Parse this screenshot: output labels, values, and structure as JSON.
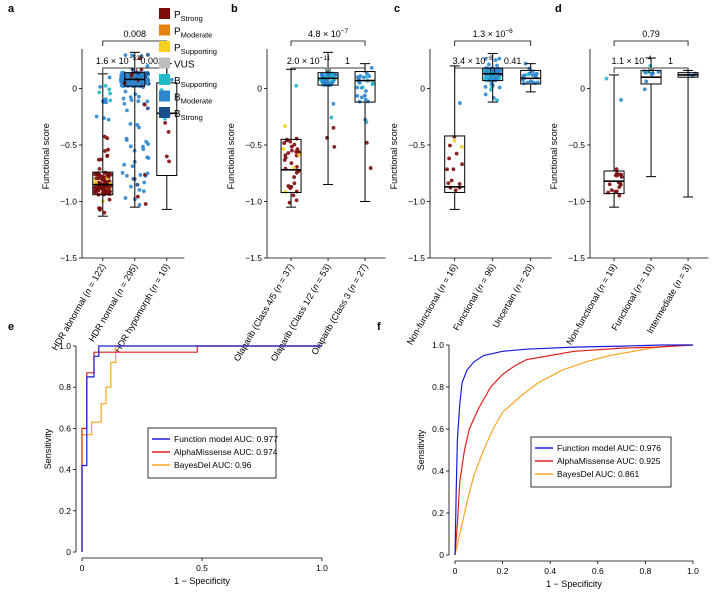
{
  "colors": {
    "P_Strong": "#7b0c0c",
    "P_Moderate": "#e8820e",
    "P_Supporting": "#f5cf1d",
    "VUS": "#bdbdbd",
    "B_Supporting": "#1fb9c9",
    "B_Moderate": "#2f86cf",
    "B_Strong": "#1a4f8a",
    "function_model": "#1a1adb",
    "alphamissense": "#e02020",
    "bayesdel": "#f5a623"
  },
  "legend": [
    {
      "key": "P_Strong",
      "base": "P",
      "sub": "Strong"
    },
    {
      "key": "P_Moderate",
      "base": "P",
      "sub": "Moderate"
    },
    {
      "key": "P_Supporting",
      "base": "P",
      "sub": "Supporting"
    },
    {
      "key": "VUS",
      "base": "VUS",
      "sub": ""
    },
    {
      "key": "B_Supporting",
      "base": "B",
      "sub": "Supporting"
    },
    {
      "key": "B_Moderate",
      "base": "B",
      "sub": "Moderate"
    },
    {
      "key": "B_Strong",
      "base": "B",
      "sub": "Strong"
    }
  ],
  "chart_data": [
    {
      "panel": "a",
      "type": "box",
      "ylabel": "Functional score",
      "ylim": [
        -1.5,
        0.5
      ],
      "yticks": [
        "0",
        "-0.5",
        "-1.0",
        "-1.5"
      ],
      "groups": [
        {
          "label": "HDR abnormal",
          "n": "122",
          "q1": -0.94,
          "median": -0.85,
          "q3": -0.74,
          "min": -1.13,
          "max": 0.13
        },
        {
          "label": "HDR normal",
          "n": "295",
          "q1": 0.02,
          "median": 0.08,
          "q3": 0.14,
          "min": -1.05,
          "max": 0.32
        },
        {
          "label": "HDR hypomorph",
          "n": "10",
          "q1": -0.77,
          "median": -0.22,
          "q3": 0.05,
          "min": -1.07,
          "max": 0.22
        }
      ],
      "comparisons": [
        {
          "text": "1.6 × 10",
          "exp": "−52",
          "from": 0,
          "to": 1
        },
        {
          "text": "0.002",
          "exp": "",
          "from": 1,
          "to": 2
        },
        {
          "text": "0.008",
          "exp": "",
          "from": 0,
          "to": 2
        }
      ]
    },
    {
      "panel": "b",
      "type": "box",
      "ylabel": "Functional score",
      "ylim": [
        -1.5,
        0.5
      ],
      "yticks": [
        "0",
        "-0.5",
        "-1.0",
        "-1.5"
      ],
      "groups": [
        {
          "label": "Olaparib (Class 4/5",
          "n": "37",
          "q1": -0.92,
          "median": -0.72,
          "q3": -0.45,
          "min": -1.05,
          "max": 0.17
        },
        {
          "label": "Olaparib (Class 1/2",
          "n": "53",
          "q1": 0.03,
          "median": 0.09,
          "q3": 0.14,
          "min": -0.85,
          "max": 0.32
        },
        {
          "label": "Olaparib (Class 3",
          "n": "27",
          "q1": -0.12,
          "median": 0.07,
          "q3": 0.15,
          "min": -1.0,
          "max": 0.22
        }
      ],
      "comparisons": [
        {
          "text": "2.0 × 10",
          "exp": "−11",
          "from": 0,
          "to": 1
        },
        {
          "text": "1",
          "exp": "",
          "from": 1,
          "to": 2
        },
        {
          "text": "4.8 × 10",
          "exp": "−7",
          "from": 0,
          "to": 2
        }
      ]
    },
    {
      "panel": "c",
      "type": "box",
      "ylabel": "Functional score",
      "ylim": [
        -1.5,
        0.5
      ],
      "yticks": [
        "0",
        "-0.5",
        "-1.0",
        "-1.5"
      ],
      "groups": [
        {
          "label": "Non-functional",
          "n": "16",
          "q1": -0.92,
          "median": -0.87,
          "q3": -0.42,
          "min": -1.07,
          "max": 0.2
        },
        {
          "label": "Functional",
          "n": "96",
          "q1": 0.07,
          "median": 0.13,
          "q3": 0.18,
          "min": -0.12,
          "max": 0.31
        },
        {
          "label": "Uncertain",
          "n": "20",
          "q1": 0.04,
          "median": 0.09,
          "q3": 0.16,
          "min": -0.03,
          "max": 0.22
        }
      ],
      "comparisons": [
        {
          "text": "3.4 × 10",
          "exp": "−8",
          "from": 0,
          "to": 1
        },
        {
          "text": "0.41",
          "exp": "",
          "from": 1,
          "to": 2
        },
        {
          "text": "1.3 × 10",
          "exp": "−6",
          "from": 0,
          "to": 2
        }
      ]
    },
    {
      "panel": "d",
      "type": "box",
      "ylabel": "Functional score",
      "ylim": [
        -1.5,
        0.5
      ],
      "yticks": [
        "0",
        "-0.5",
        "-1.0",
        "-1.5"
      ],
      "groups": [
        {
          "label": "Non-functional",
          "n": "19",
          "q1": -0.93,
          "median": -0.82,
          "q3": -0.73,
          "min": -1.05,
          "max": 0.12
        },
        {
          "label": "Functional",
          "n": "10",
          "q1": 0.04,
          "median": 0.1,
          "q3": 0.16,
          "min": -0.78,
          "max": 0.27
        },
        {
          "label": "Intermediate",
          "n": "3",
          "q1": 0.1,
          "median": 0.12,
          "q3": 0.14,
          "min": -0.96,
          "max": 0.16
        }
      ],
      "comparisons": [
        {
          "text": "1.1 × 10",
          "exp": "−4",
          "from": 0,
          "to": 1
        },
        {
          "text": "1",
          "exp": "",
          "from": 1,
          "to": 2
        },
        {
          "text": "0.79",
          "exp": "",
          "from": 0,
          "to": 2
        }
      ]
    },
    {
      "panel": "e",
      "type": "line",
      "xlabel": "1 − Specificity",
      "ylabel": "Sensitivity",
      "xlim": [
        0,
        1
      ],
      "ylim": [
        0,
        1
      ],
      "xticks": [
        "0",
        "0.5",
        "1.0"
      ],
      "yticks": [
        "0",
        "0.2",
        "0.4",
        "0.6",
        "0.8",
        "1.0"
      ],
      "series": [
        {
          "name": "Function model AUC: 0.977",
          "color_key": "function_model",
          "points": [
            [
              0,
              0
            ],
            [
              0,
              0.42
            ],
            [
              0.02,
              0.42
            ],
            [
              0.02,
              0.85
            ],
            [
              0.05,
              0.85
            ],
            [
              0.05,
              0.95
            ],
            [
              0.07,
              0.95
            ],
            [
              0.07,
              1.0
            ],
            [
              1,
              1
            ]
          ]
        },
        {
          "name": "AlphaMissense AUC: 0.974",
          "color_key": "alphamissense",
          "points": [
            [
              0,
              0
            ],
            [
              0,
              0.6
            ],
            [
              0.02,
              0.6
            ],
            [
              0.02,
              0.87
            ],
            [
              0.05,
              0.87
            ],
            [
              0.05,
              0.97
            ],
            [
              0.48,
              0.97
            ],
            [
              0.48,
              1.0
            ],
            [
              1,
              1
            ]
          ]
        },
        {
          "name": "BayesDel AUC: 0.96",
          "color_key": "bayesdel",
          "points": [
            [
              0,
              0
            ],
            [
              0,
              0.57
            ],
            [
              0.04,
              0.57
            ],
            [
              0.04,
              0.63
            ],
            [
              0.08,
              0.63
            ],
            [
              0.08,
              0.72
            ],
            [
              0.1,
              0.72
            ],
            [
              0.1,
              0.8
            ],
            [
              0.12,
              0.8
            ],
            [
              0.12,
              0.92
            ],
            [
              0.14,
              0.92
            ],
            [
              0.14,
              1.0
            ],
            [
              1,
              1
            ]
          ]
        }
      ]
    },
    {
      "panel": "f",
      "type": "line",
      "xlabel": "1 − Specificity",
      "ylabel": "Sensitivity",
      "xlim": [
        0,
        1
      ],
      "ylim": [
        0,
        1
      ],
      "xticks": [
        "0",
        "0.2",
        "0.4",
        "0.6",
        "0.8",
        "1.0"
      ],
      "yticks": [
        "0",
        "0.2",
        "0.4",
        "0.6",
        "0.8",
        "1.0"
      ],
      "series": [
        {
          "name": "Function model AUC: 0.976",
          "color_key": "function_model",
          "points": [
            [
              0,
              0
            ],
            [
              0.005,
              0.3
            ],
            [
              0.01,
              0.55
            ],
            [
              0.02,
              0.72
            ],
            [
              0.03,
              0.82
            ],
            [
              0.05,
              0.88
            ],
            [
              0.08,
              0.92
            ],
            [
              0.12,
              0.95
            ],
            [
              0.2,
              0.97
            ],
            [
              0.3,
              0.98
            ],
            [
              0.5,
              0.99
            ],
            [
              0.7,
              0.995
            ],
            [
              0.87,
              1.0
            ],
            [
              1,
              1
            ]
          ]
        },
        {
          "name": "AlphaMissense AUC: 0.925",
          "color_key": "alphamissense",
          "points": [
            [
              0,
              0
            ],
            [
              0.01,
              0.15
            ],
            [
              0.02,
              0.35
            ],
            [
              0.04,
              0.5
            ],
            [
              0.06,
              0.6
            ],
            [
              0.1,
              0.7
            ],
            [
              0.15,
              0.8
            ],
            [
              0.2,
              0.86
            ],
            [
              0.25,
              0.9
            ],
            [
              0.3,
              0.93
            ],
            [
              0.4,
              0.95
            ],
            [
              0.5,
              0.97
            ],
            [
              0.7,
              0.985
            ],
            [
              0.85,
              0.99
            ],
            [
              1,
              1
            ]
          ]
        },
        {
          "name": "BayesDel AUC: 0.861",
          "color_key": "bayesdel",
          "points": [
            [
              0,
              0
            ],
            [
              0.02,
              0.1
            ],
            [
              0.05,
              0.25
            ],
            [
              0.08,
              0.38
            ],
            [
              0.12,
              0.5
            ],
            [
              0.16,
              0.6
            ],
            [
              0.2,
              0.68
            ],
            [
              0.28,
              0.76
            ],
            [
              0.35,
              0.82
            ],
            [
              0.45,
              0.88
            ],
            [
              0.55,
              0.92
            ],
            [
              0.65,
              0.95
            ],
            [
              0.75,
              0.97
            ],
            [
              0.85,
              0.99
            ],
            [
              0.95,
              1.0
            ],
            [
              1,
              1
            ]
          ]
        }
      ]
    }
  ]
}
